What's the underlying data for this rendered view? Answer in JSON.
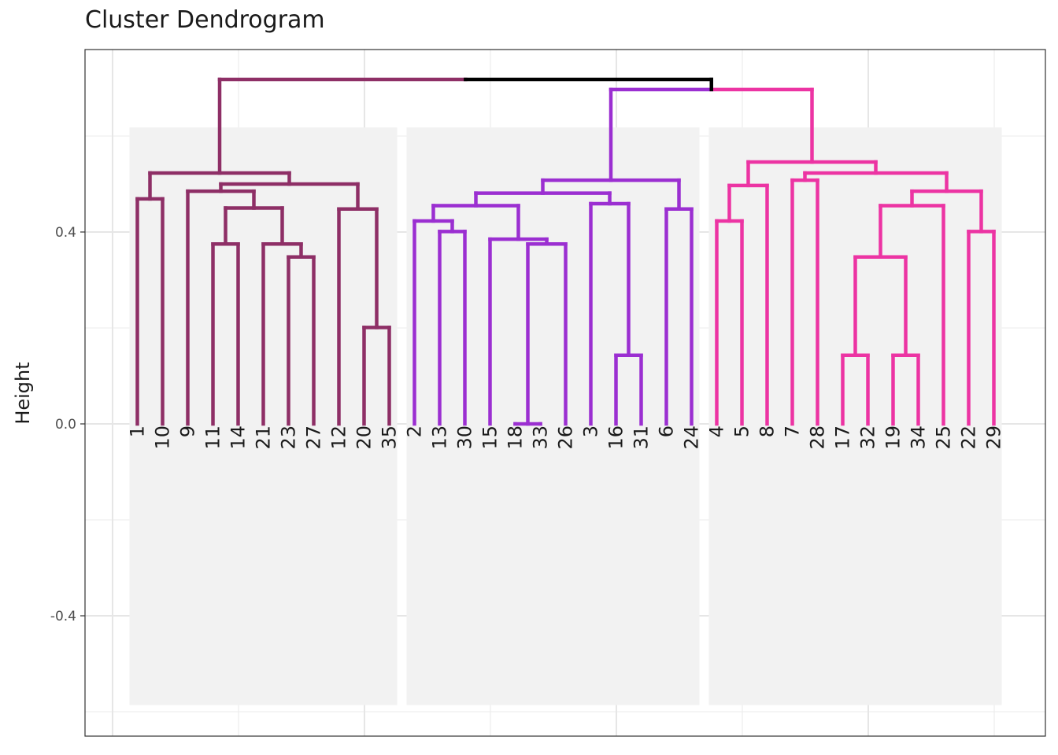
{
  "chart_data": {
    "type": "dendrogram",
    "title": "Cluster Dendrogram",
    "xlabel": "",
    "ylabel": "Height",
    "ylim": [
      -0.62,
      0.72
    ],
    "y_ticks": [
      -0.4,
      0.0,
      0.4
    ],
    "y_tick_labels": [
      "-0.4",
      "0.0",
      "0.4"
    ],
    "grid": true,
    "leaf_order": [
      "1",
      "10",
      "9",
      "11",
      "14",
      "21",
      "23",
      "27",
      "12",
      "20",
      "35",
      "2",
      "13",
      "30",
      "15",
      "18",
      "33",
      "26",
      "3",
      "16",
      "31",
      "6",
      "24",
      "4",
      "5",
      "8",
      "7",
      "28",
      "17",
      "32",
      "19",
      "34",
      "25",
      "22",
      "29"
    ],
    "clusters": [
      {
        "leaves": [
          "1",
          "10",
          "9",
          "11",
          "14",
          "21",
          "23",
          "27",
          "12",
          "20",
          "35"
        ],
        "color": "#8E2F66"
      },
      {
        "leaves": [
          "2",
          "13",
          "30",
          "15",
          "18",
          "33",
          "26",
          "3",
          "16",
          "31",
          "6",
          "24"
        ],
        "color": "#9B2FD1"
      },
      {
        "leaves": [
          "4",
          "5",
          "8",
          "7",
          "28",
          "17",
          "32",
          "19",
          "34",
          "25",
          "22",
          "29"
        ],
        "color": "#EC34A3"
      }
    ],
    "merges": [
      {
        "a": "1",
        "b": "10",
        "height": 0.469,
        "color": "#8E2F66"
      },
      {
        "a": "11",
        "b": "14",
        "height": 0.375,
        "color": "#8E2F66"
      },
      {
        "a": "23",
        "b": "27",
        "height": 0.348,
        "color": "#8E2F66"
      },
      {
        "a": "21",
        "b": "M3",
        "height": 0.375,
        "color": "#8E2F66"
      },
      {
        "a": "M2",
        "b": "M4",
        "height": 0.45,
        "color": "#8E2F66"
      },
      {
        "a": "9",
        "b": "M5",
        "height": 0.485,
        "color": "#8E2F66"
      },
      {
        "a": "20",
        "b": "35",
        "height": 0.201,
        "color": "#8E2F66"
      },
      {
        "a": "12",
        "b": "M7",
        "height": 0.448,
        "color": "#8E2F66"
      },
      {
        "a": "M6",
        "b": "M8",
        "height": 0.5,
        "color": "#8E2F66"
      },
      {
        "a": "M1",
        "b": "M9",
        "height": 0.523,
        "color": "#8E2F66"
      },
      {
        "a": "13",
        "b": "30",
        "height": 0.401,
        "color": "#9B2FD1"
      },
      {
        "a": "2",
        "b": "M11",
        "height": 0.423,
        "color": "#9B2FD1"
      },
      {
        "a": "18",
        "b": "33",
        "height": 0.0,
        "color": "#9B2FD1"
      },
      {
        "a": "M13",
        "b": "26",
        "height": 0.375,
        "color": "#9B2FD1"
      },
      {
        "a": "15",
        "b": "M14",
        "height": 0.385,
        "color": "#9B2FD1"
      },
      {
        "a": "M12",
        "b": "M15",
        "height": 0.455,
        "color": "#9B2FD1"
      },
      {
        "a": "16",
        "b": "31",
        "height": 0.143,
        "color": "#9B2FD1"
      },
      {
        "a": "3",
        "b": "M17",
        "height": 0.459,
        "color": "#9B2FD1"
      },
      {
        "a": "M16",
        "b": "M18",
        "height": 0.481,
        "color": "#9B2FD1"
      },
      {
        "a": "6",
        "b": "24",
        "height": 0.448,
        "color": "#9B2FD1"
      },
      {
        "a": "M19",
        "b": "M20",
        "height": 0.508,
        "color": "#9B2FD1"
      },
      {
        "a": "4",
        "b": "5",
        "height": 0.423,
        "color": "#EC34A3"
      },
      {
        "a": "M22",
        "b": "8",
        "height": 0.497,
        "color": "#EC34A3"
      },
      {
        "a": "7",
        "b": "28",
        "height": 0.508,
        "color": "#EC34A3"
      },
      {
        "a": "17",
        "b": "32",
        "height": 0.143,
        "color": "#EC34A3"
      },
      {
        "a": "19",
        "b": "34",
        "height": 0.143,
        "color": "#EC34A3"
      },
      {
        "a": "M25",
        "b": "M26",
        "height": 0.348,
        "color": "#EC34A3"
      },
      {
        "a": "M27",
        "b": "25",
        "height": 0.455,
        "color": "#EC34A3"
      },
      {
        "a": "22",
        "b": "29",
        "height": 0.401,
        "color": "#EC34A3"
      },
      {
        "a": "M28",
        "b": "M29",
        "height": 0.485,
        "color": "#EC34A3"
      },
      {
        "a": "M24",
        "b": "M30",
        "height": 0.523,
        "color": "#EC34A3"
      },
      {
        "a": "M23",
        "b": "M31",
        "height": 0.546,
        "color": "#EC34A3"
      },
      {
        "a": "M21",
        "b": "M32",
        "height": 0.697,
        "color": "#9B2FD1",
        "color_b": "#EC34A3"
      },
      {
        "a": "M10",
        "b": "M33",
        "height": 0.718,
        "color": "#8E2F66",
        "color_b": "#000000"
      }
    ]
  }
}
